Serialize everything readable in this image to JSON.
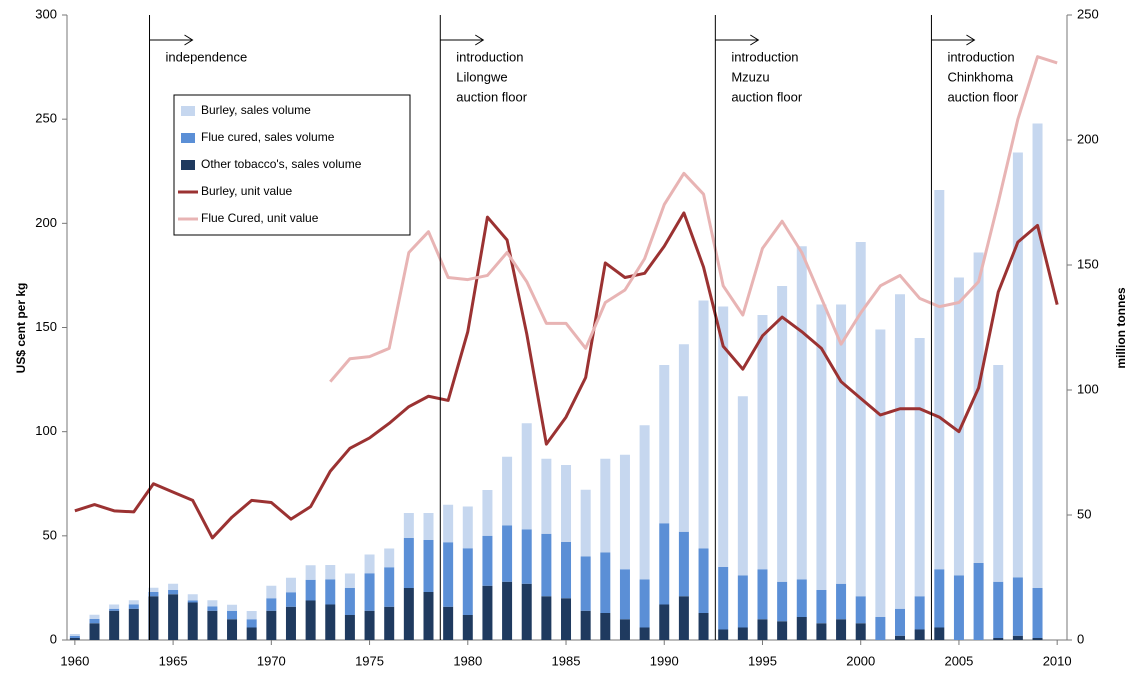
{
  "chart_data": {
    "type": "bar",
    "y_label": "US$ cent per kg",
    "y2_label": "million tonnes",
    "x": [
      1960,
      1961,
      1962,
      1963,
      1964,
      1965,
      1966,
      1967,
      1968,
      1969,
      1970,
      1971,
      1972,
      1973,
      1974,
      1975,
      1976,
      1977,
      1978,
      1979,
      1980,
      1981,
      1982,
      1983,
      1984,
      1985,
      1986,
      1987,
      1988,
      1989,
      1990,
      1991,
      1992,
      1993,
      1994,
      1995,
      1996,
      1997,
      1998,
      1999,
      2000,
      2001,
      2002,
      2003,
      2004,
      2005,
      2006,
      2007,
      2008,
      2009,
      2010
    ],
    "xlim": [
      1959.6,
      2010.5
    ],
    "xticks": [
      1960,
      1965,
      1970,
      1975,
      1980,
      1985,
      1990,
      1995,
      2000,
      2005,
      2010
    ],
    "ylim": [
      0,
      300
    ],
    "yticks": [
      0,
      50,
      100,
      150,
      200,
      250,
      300
    ],
    "y2lim": [
      0,
      250
    ],
    "y2ticks": [
      0,
      50,
      100,
      150,
      200,
      250
    ],
    "series": [
      {
        "name": "Burley, sales volume",
        "type": "bar",
        "axis": "y2",
        "color": "#c6d7ef",
        "values": [
          0.8,
          1.7,
          1.7,
          1.7,
          1.7,
          2.5,
          2.5,
          2.5,
          2.5,
          3.3,
          5,
          5.8,
          5.8,
          5.8,
          5.8,
          7.5,
          7.5,
          10,
          10.8,
          15,
          16.7,
          18.3,
          27.5,
          42.5,
          30,
          30.8,
          26.7,
          37.5,
          45.8,
          61.7,
          63.3,
          75,
          99.2,
          104.2,
          71.7,
          101.7,
          118.3,
          133.3,
          114.2,
          111.7,
          141.7,
          115,
          125.8,
          103.3,
          151.7,
          119.2,
          124.2,
          86.7,
          170,
          185.8,
          null
        ]
      },
      {
        "name": "Flue cured, sales volume",
        "type": "bar",
        "axis": "y2",
        "color": "#5b8fd6",
        "values": [
          0.8,
          1.7,
          0.8,
          1.7,
          1.7,
          1.7,
          0.8,
          1.7,
          3.3,
          3.3,
          5,
          5.8,
          8.3,
          10,
          10.8,
          15,
          15.8,
          20,
          20.8,
          25.8,
          26.7,
          20,
          22.5,
          21.7,
          25,
          22.5,
          21.7,
          24.2,
          20,
          19.2,
          32.5,
          25.8,
          25.8,
          25,
          20.8,
          20,
          15.8,
          15,
          13.3,
          14.2,
          10.8,
          9.2,
          10.8,
          13.3,
          23.3,
          25.8,
          30.8,
          22.5,
          23.3,
          20,
          null
        ]
      },
      {
        "name": "Other tobacco's, sales volume",
        "type": "bar",
        "axis": "y2",
        "color": "#1f3a5f",
        "values": [
          0.8,
          6.7,
          11.7,
          12.5,
          17.5,
          18.3,
          15,
          11.7,
          8.3,
          5,
          11.7,
          13.3,
          15.8,
          14.2,
          10,
          11.7,
          13.3,
          20.8,
          19.2,
          13.3,
          10,
          21.7,
          23.3,
          22.5,
          17.5,
          16.7,
          11.7,
          10.8,
          8.3,
          5,
          14.2,
          17.5,
          10.8,
          4.2,
          5,
          8.3,
          7.5,
          9.2,
          6.7,
          8.3,
          6.7,
          0,
          1.7,
          4.2,
          5,
          0,
          0,
          0.8,
          1.7,
          0.8,
          null
        ]
      },
      {
        "name": "Burley, unit value",
        "type": "line",
        "color": "#9b3232",
        "values": [
          62,
          65,
          62,
          61.5,
          75,
          71,
          67,
          49,
          59,
          67,
          66,
          58,
          64,
          81,
          92,
          97,
          104,
          112,
          117,
          115,
          148,
          203,
          192,
          147,
          94,
          107,
          126,
          181,
          174,
          176,
          189,
          205,
          179,
          141,
          130,
          146,
          155,
          148,
          140,
          124,
          116,
          108,
          111,
          111,
          107,
          100,
          121,
          167,
          191,
          199,
          161
        ]
      },
      {
        "name": "Flue Cured, unit value",
        "type": "line",
        "color": "#e8b4b4",
        "values": [
          null,
          null,
          null,
          null,
          null,
          null,
          null,
          null,
          null,
          null,
          null,
          null,
          null,
          124,
          135,
          136,
          140,
          186,
          196,
          174,
          173,
          175,
          186,
          172,
          152,
          152,
          140,
          162,
          168,
          183,
          209,
          224,
          214,
          170,
          156,
          188,
          201,
          186,
          164,
          142,
          157,
          170,
          175,
          164,
          160,
          162,
          172,
          210,
          250,
          280,
          277
        ]
      }
    ],
    "annotations": [
      {
        "x": 1963.8,
        "lines": [
          "independence"
        ]
      },
      {
        "x": 1978.6,
        "lines": [
          "introduction",
          "Lilongwe",
          "auction floor"
        ]
      },
      {
        "x": 1992.6,
        "lines": [
          "introduction",
          "Mzuzu",
          "auction floor"
        ]
      },
      {
        "x": 2003.6,
        "lines": [
          "introduction",
          "Chinkhoma",
          "auction floor"
        ]
      }
    ]
  }
}
